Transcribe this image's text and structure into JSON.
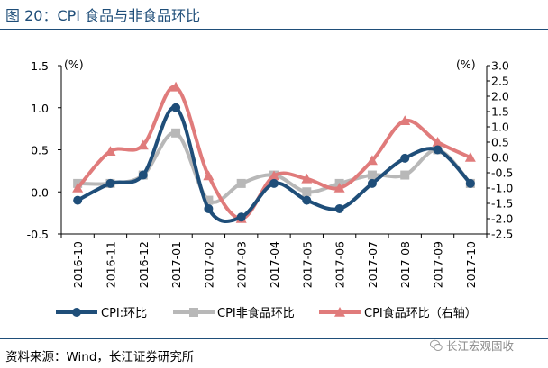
{
  "header": {
    "title": "图 20：CPI 食品与非食品环比"
  },
  "footer": {
    "source": "资料来源：Wind，长江证券研究所",
    "watermark": "长江宏观固收"
  },
  "icons": {
    "watermark": "wechat-icon"
  },
  "chart_data": {
    "type": "line",
    "categories": [
      "2016-10",
      "2016-11",
      "2016-12",
      "2017-01",
      "2017-02",
      "2017-03",
      "2017-04",
      "2017-05",
      "2017-06",
      "2017-07",
      "2017-08",
      "2017-09",
      "2017-10"
    ],
    "left_axis": {
      "unit": "(%)",
      "ylim": [
        -0.5,
        1.5
      ],
      "ticks": [
        "1.5",
        "1.0",
        "0.5",
        "0.0",
        "-0.5"
      ],
      "tick_values": [
        1.5,
        1.0,
        0.5,
        0.0,
        -0.5
      ]
    },
    "right_axis": {
      "unit": "(%)",
      "ylim": [
        -2.5,
        3.0
      ],
      "ticks": [
        "3.0",
        "2.5",
        "2.0",
        "1.5",
        "1.0",
        "0.5",
        "0.0",
        "-0.5",
        "-1.0",
        "-1.5",
        "-2.0",
        "-2.5"
      ],
      "tick_values": [
        3.0,
        2.5,
        2.0,
        1.5,
        1.0,
        0.5,
        0.0,
        -0.5,
        -1.0,
        -1.5,
        -2.0,
        -2.5
      ]
    },
    "series": [
      {
        "name": "CPI:环比",
        "axis": "left",
        "color": "#1f4e79",
        "marker": "circle",
        "values": [
          -0.1,
          0.1,
          0.2,
          1.0,
          -0.2,
          -0.3,
          0.1,
          -0.1,
          -0.2,
          0.1,
          0.4,
          0.5,
          0.1
        ]
      },
      {
        "name": "CPI非食品环比",
        "axis": "left",
        "color": "#b8b8b8",
        "marker": "square",
        "values": [
          0.1,
          0.1,
          0.2,
          0.7,
          -0.1,
          0.1,
          0.2,
          0.0,
          0.1,
          0.2,
          0.2,
          0.5,
          0.1
        ]
      },
      {
        "name": "CPI食品环比（右轴）",
        "axis": "right",
        "color": "#e07b7b",
        "marker": "triangle",
        "values": [
          -1.0,
          0.2,
          0.4,
          2.3,
          -0.6,
          -2.0,
          -0.6,
          -0.7,
          -1.0,
          -0.1,
          1.2,
          0.5,
          0.0
        ]
      }
    ]
  }
}
